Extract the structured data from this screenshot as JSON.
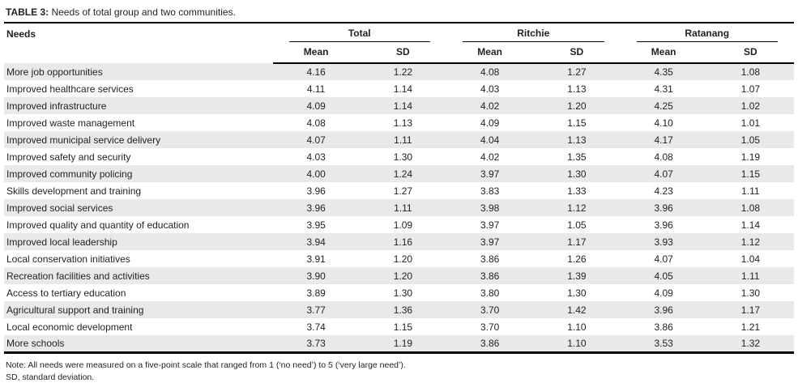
{
  "table": {
    "title_prefix": "TABLE 3:",
    "title_text": "Needs of total group and two communities.",
    "columns": {
      "needs_label": "Needs",
      "groups": [
        {
          "label": "Total"
        },
        {
          "label": "Ritchie"
        },
        {
          "label": "Ratanang"
        }
      ],
      "sub_headers": [
        "Mean",
        "SD"
      ]
    },
    "rows": [
      {
        "need": "More job opportunities",
        "values": [
          "4.16",
          "1.22",
          "4.08",
          "1.27",
          "4.35",
          "1.08"
        ]
      },
      {
        "need": "Improved healthcare services",
        "values": [
          "4.11",
          "1.14",
          "4.03",
          "1.13",
          "4.31",
          "1.07"
        ]
      },
      {
        "need": "Improved infrastructure",
        "values": [
          "4.09",
          "1.14",
          "4.02",
          "1.20",
          "4.25",
          "1.02"
        ]
      },
      {
        "need": "Improved waste management",
        "values": [
          "4.08",
          "1.13",
          "4.09",
          "1.15",
          "4.10",
          "1.01"
        ]
      },
      {
        "need": "Improved municipal service delivery",
        "values": [
          "4.07",
          "1.11",
          "4.04",
          "1.13",
          "4.17",
          "1.05"
        ]
      },
      {
        "need": "Improved safety and security",
        "values": [
          "4.03",
          "1.30",
          "4.02",
          "1.35",
          "4.08",
          "1.19"
        ]
      },
      {
        "need": "Improved community policing",
        "values": [
          "4.00",
          "1.24",
          "3.97",
          "1.30",
          "4.07",
          "1.15"
        ]
      },
      {
        "need": "Skills development and training",
        "values": [
          "3.96",
          "1.27",
          "3.83",
          "1.33",
          "4.23",
          "1.11"
        ]
      },
      {
        "need": "Improved social services",
        "values": [
          "3.96",
          "1.11",
          "3.98",
          "1.12",
          "3.96",
          "1.08"
        ]
      },
      {
        "need": "Improved quality and quantity of education",
        "values": [
          "3.95",
          "1.09",
          "3.97",
          "1.05",
          "3.96",
          "1.14"
        ]
      },
      {
        "need": "Improved local leadership",
        "values": [
          "3.94",
          "1.16",
          "3.97",
          "1.17",
          "3.93",
          "1.12"
        ]
      },
      {
        "need": "Local conservation initiatives",
        "values": [
          "3.91",
          "1.20",
          "3.86",
          "1.26",
          "4.07",
          "1.04"
        ]
      },
      {
        "need": "Recreation facilities and activities",
        "values": [
          "3.90",
          "1.20",
          "3.86",
          "1.39",
          "4.05",
          "1.11"
        ]
      },
      {
        "need": "Access to tertiary education",
        "values": [
          "3.89",
          "1.30",
          "3.80",
          "1.30",
          "4.09",
          "1.30"
        ]
      },
      {
        "need": "Agricultural support and training",
        "values": [
          "3.77",
          "1.36",
          "3.70",
          "1.42",
          "3.96",
          "1.17"
        ]
      },
      {
        "need": "Local economic development",
        "values": [
          "3.74",
          "1.15",
          "3.70",
          "1.10",
          "3.86",
          "1.21"
        ]
      },
      {
        "need": "More schools",
        "values": [
          "3.73",
          "1.19",
          "3.86",
          "1.10",
          "3.53",
          "1.32"
        ]
      }
    ],
    "notes": [
      "Note: All needs were measured on a five-point scale that ranged from 1 (‘no need’) to 5 (‘very large need’).",
      "SD, standard deviation."
    ],
    "colors": {
      "row_alt": "#e9e9e9",
      "rule": "#000000",
      "text": "#231f20"
    }
  }
}
